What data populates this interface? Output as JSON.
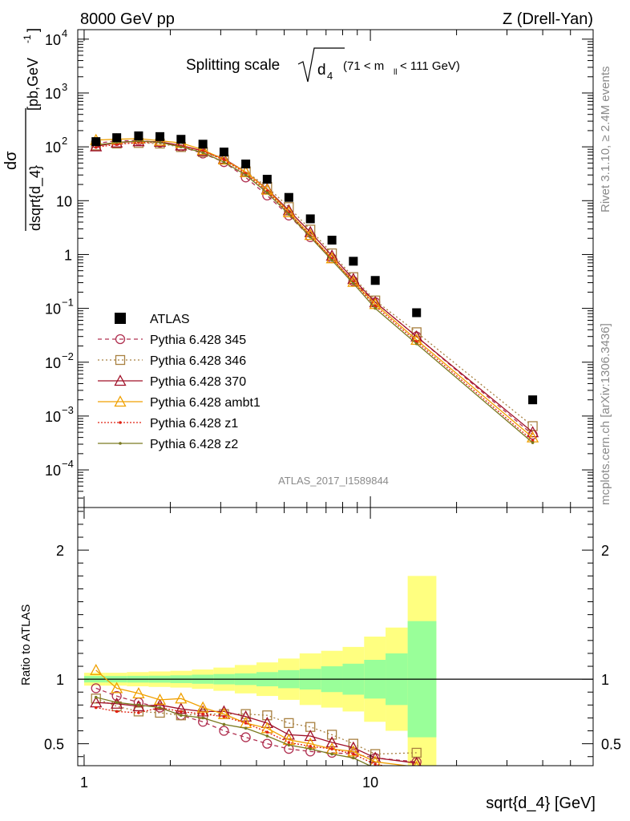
{
  "header": {
    "left": "8000 GeV pp",
    "right": "Z (Drell-Yan)"
  },
  "side_labels": {
    "rivet": "Rivet 3.1.10, ≥ 2.4M events",
    "mcplots": "mcplots.cern.ch [arXiv:1306.3436]"
  },
  "main_title": {
    "prefix": "Splitting scale",
    "var": "d",
    "sub": "4",
    "range": "(71 < m",
    "range_sub": "ll",
    "range_end": " < 111 GeV)"
  },
  "ylabel": {
    "num": "dσ",
    "den": "dsqrt{d_4}",
    "unit": "[pb,GeV",
    "unit_sup": "-1",
    "unit_end": "]"
  },
  "watermark": "ATLAS_2017_I1589844",
  "ratio_ylabel": "Ratio to ATLAS",
  "xlabel": "sqrt{d_4} [GeV]",
  "chart_data": {
    "type": "line",
    "x_scale": "log",
    "xlim": [
      0.95,
      60
    ],
    "main": {
      "y_scale": "log",
      "ylim": [
        2e-05,
        15000
      ],
      "ytick_labels": [
        {
          "v": 10000,
          "b": "10",
          "e": "4"
        },
        {
          "v": 1000,
          "b": "10",
          "e": "3"
        },
        {
          "v": 100,
          "b": "10",
          "e": "2"
        },
        {
          "v": 10,
          "b": "10",
          "e": ""
        },
        {
          "v": 1,
          "b": "1",
          "e": ""
        },
        {
          "v": 0.1,
          "b": "10",
          "e": "−1"
        },
        {
          "v": 0.01,
          "b": "10",
          "e": "−2"
        },
        {
          "v": 0.001,
          "b": "10",
          "e": "−3"
        },
        {
          "v": 0.0001,
          "b": "10",
          "e": "−4"
        }
      ]
    },
    "ratio": {
      "y_scale": "linear",
      "ylim": [
        0.33,
        2.33
      ],
      "ytick_labels": [
        "0.5",
        "1",
        "2"
      ],
      "ytick_values": [
        0.5,
        1,
        2
      ]
    },
    "xtick_labels": [
      "1",
      "10"
    ],
    "xtick_values": [
      1,
      10
    ],
    "bin_edges": [
      1.0,
      1.19,
      1.41,
      1.68,
      2.0,
      2.38,
      2.83,
      3.36,
      4.0,
      4.76,
      5.66,
      6.73,
      8.0,
      9.51,
      11.3,
      13.5,
      17.0,
      60.0
    ],
    "data": {
      "name": "ATLAS",
      "x": [
        1.1,
        1.3,
        1.55,
        1.84,
        2.18,
        2.6,
        3.08,
        3.67,
        4.36,
        5.19,
        6.17,
        7.34,
        8.72,
        10.4,
        14.5,
        36.9
      ],
      "y": [
        125,
        148,
        160,
        155,
        138,
        112,
        80,
        48,
        25,
        11.5,
        4.6,
        1.85,
        0.75,
        0.33,
        0.083,
        0.002
      ],
      "band_green": [
        0.025,
        0.025,
        0.026,
        0.027,
        0.03,
        0.035,
        0.04,
        0.045,
        0.055,
        0.07,
        0.08,
        0.1,
        0.12,
        0.15,
        0.2,
        0.45
      ],
      "band_yellow": [
        0.05,
        0.05,
        0.055,
        0.06,
        0.065,
        0.075,
        0.09,
        0.11,
        0.13,
        0.16,
        0.2,
        0.22,
        0.25,
        0.33,
        0.4,
        0.8
      ],
      "color": "#000000"
    },
    "series": [
      {
        "name": "Pythia 6.428 345",
        "color": "#b03050",
        "marker": "circle",
        "dash": "5,4",
        "x": [
          1.1,
          1.3,
          1.55,
          1.84,
          2.18,
          2.6,
          3.08,
          3.67,
          4.36,
          5.19,
          6.17,
          7.34,
          8.72,
          10.4,
          14.5,
          36.9
        ],
        "y": [
          116,
          129,
          131,
          120,
          100,
          75,
          52,
          27,
          12.5,
          5.3,
          2.1,
          0.85,
          0.32,
          0.13,
          0.03,
          0.00045
        ],
        "ratio": [
          0.93,
          0.87,
          0.82,
          0.78,
          0.72,
          0.67,
          0.6,
          0.55,
          0.5,
          0.46,
          0.44,
          0.43,
          0.42,
          0.39,
          0.36,
          null
        ]
      },
      {
        "name": "Pythia 6.428 346",
        "color": "#a88040",
        "marker": "square",
        "dash": "2,3",
        "x": [
          1.1,
          1.3,
          1.55,
          1.84,
          2.18,
          2.6,
          3.08,
          3.67,
          4.36,
          5.19,
          6.17,
          7.34,
          8.72,
          10.4,
          14.5,
          36.9
        ],
        "y": [
          106,
          115,
          118,
          115,
          99,
          80,
          58,
          35,
          18,
          7.6,
          2.9,
          1.05,
          0.38,
          0.14,
          0.036,
          0.00065
        ],
        "ratio": [
          0.85,
          0.79,
          0.75,
          0.74,
          0.72,
          0.73,
          0.73,
          0.73,
          0.72,
          0.66,
          0.63,
          0.57,
          0.5,
          0.42,
          0.43,
          null
        ]
      },
      {
        "name": "Pythia 6.428 370",
        "color": "#a01028",
        "marker": "triangle",
        "dash": "",
        "x": [
          1.1,
          1.3,
          1.55,
          1.84,
          2.18,
          2.6,
          3.08,
          3.67,
          4.36,
          5.19,
          6.17,
          7.34,
          8.72,
          10.4,
          14.5,
          36.9
        ],
        "y": [
          102,
          120,
          127,
          124,
          106,
          84,
          60,
          34,
          16.5,
          6.6,
          2.6,
          0.95,
          0.35,
          0.13,
          0.03,
          0.0005
        ],
        "ratio": [
          0.82,
          0.81,
          0.79,
          0.8,
          0.77,
          0.75,
          0.75,
          0.71,
          0.66,
          0.57,
          0.56,
          0.51,
          0.47,
          0.39,
          0.35,
          null
        ]
      },
      {
        "name": "Pythia 6.428 ambt1",
        "color": "#f0a000",
        "marker": "triangle",
        "dash": "",
        "x": [
          1.1,
          1.3,
          1.55,
          1.84,
          2.18,
          2.6,
          3.08,
          3.67,
          4.36,
          5.19,
          6.17,
          7.34,
          8.72,
          10.4,
          14.5,
          36.9
        ],
        "y": [
          134,
          138,
          142,
          130,
          118,
          88,
          58,
          34,
          16,
          6.1,
          2.3,
          0.85,
          0.31,
          0.12,
          0.026,
          0.0004
        ],
        "ratio": [
          1.07,
          0.93,
          0.89,
          0.84,
          0.85,
          0.78,
          0.73,
          0.66,
          0.62,
          0.53,
          0.5,
          0.46,
          0.44,
          0.36,
          0.32,
          null
        ]
      },
      {
        "name": "Pythia 6.428 z1",
        "color": "#e02010",
        "marker": "dot",
        "dash": "2,2",
        "x": [
          1.1,
          1.3,
          1.55,
          1.84,
          2.18,
          2.6,
          3.08,
          3.67,
          4.36,
          5.19,
          6.17,
          7.34,
          8.72,
          10.4,
          14.5,
          36.9
        ],
        "y": [
          98,
          111,
          120,
          121,
          104,
          84,
          57,
          32,
          15,
          5.9,
          2.2,
          0.84,
          0.31,
          0.11,
          0.024,
          0.00035
        ],
        "ratio": [
          0.78,
          0.75,
          0.74,
          0.78,
          0.75,
          0.73,
          0.71,
          0.66,
          0.59,
          0.51,
          0.48,
          0.46,
          0.42,
          0.34,
          0.29,
          null
        ]
      },
      {
        "name": "Pythia 6.428 z2",
        "color": "#7a7a20",
        "marker": "dot",
        "dash": "",
        "x": [
          1.1,
          1.3,
          1.55,
          1.84,
          2.18,
          2.6,
          3.08,
          3.67,
          4.36,
          5.19,
          6.17,
          7.34,
          8.72,
          10.4,
          14.5,
          36.9
        ],
        "y": [
          108,
          121,
          128,
          121,
          100,
          78,
          52,
          30,
          14,
          5.6,
          2.1,
          0.78,
          0.29,
          0.1,
          0.022,
          0.00032
        ],
        "ratio": [
          0.86,
          0.82,
          0.8,
          0.78,
          0.72,
          0.7,
          0.65,
          0.62,
          0.56,
          0.49,
          0.46,
          0.42,
          0.39,
          0.31,
          0.26,
          null
        ]
      }
    ]
  }
}
